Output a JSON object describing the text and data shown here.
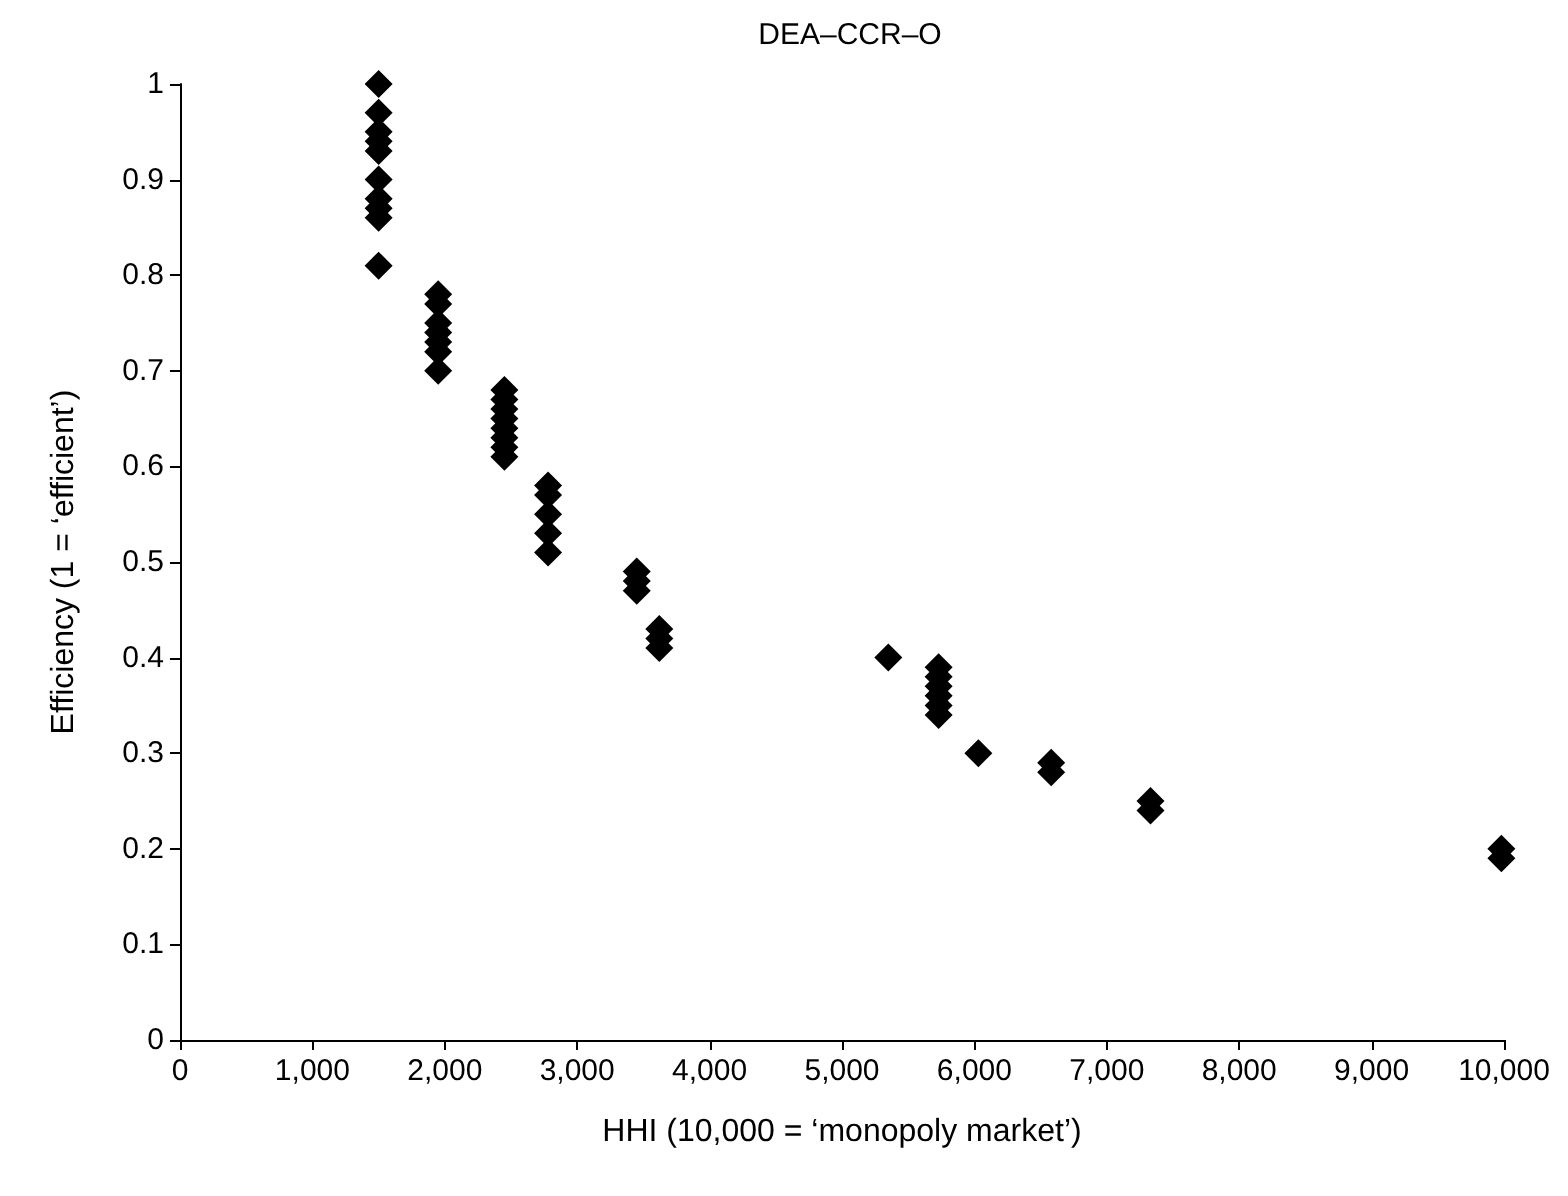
{
  "chart_data": {
    "type": "scatter",
    "title": "DEA–CCR–O",
    "xlabel": "HHI (10,000 = ‘monopoly market’)",
    "ylabel": "Efficiency (1 = ‘efficient’)",
    "x": [
      1500,
      1500,
      1500,
      1500,
      1500,
      1500,
      1500,
      1500,
      1500,
      1500,
      1950,
      1950,
      1950,
      1950,
      1950,
      1950,
      1950,
      2450,
      2450,
      2450,
      2450,
      2450,
      2450,
      2450,
      2450,
      2780,
      2780,
      2780,
      2780,
      2780,
      3450,
      3450,
      3450,
      3620,
      3620,
      3620,
      5350,
      5730,
      5730,
      5730,
      5730,
      5730,
      5730,
      6030,
      6580,
      6580,
      7330,
      7330,
      9980,
      9980
    ],
    "values": [
      1.0,
      0.97,
      0.95,
      0.94,
      0.93,
      0.9,
      0.88,
      0.87,
      0.86,
      0.81,
      0.78,
      0.77,
      0.75,
      0.74,
      0.73,
      0.72,
      0.7,
      0.68,
      0.67,
      0.66,
      0.65,
      0.64,
      0.63,
      0.62,
      0.61,
      0.58,
      0.57,
      0.55,
      0.53,
      0.51,
      0.49,
      0.48,
      0.47,
      0.43,
      0.42,
      0.41,
      0.4,
      0.39,
      0.38,
      0.37,
      0.36,
      0.35,
      0.34,
      0.3,
      0.29,
      0.28,
      0.25,
      0.24,
      0.2,
      0.19
    ],
    "color": "#000000",
    "marker": "diamond",
    "grid": false,
    "xlim": [
      0,
      10000
    ],
    "xticks": [
      0,
      {
        "value": 1000,
        "label": "1,000"
      },
      {
        "value": 2000,
        "label": "2,000"
      },
      {
        "value": 3000,
        "label": "3,000"
      },
      {
        "value": 4000,
        "label": "4,000"
      },
      {
        "value": 5000,
        "label": "5,000"
      },
      {
        "value": 6000,
        "label": "6,000"
      },
      {
        "value": 7000,
        "label": "7,000"
      },
      {
        "value": 8000,
        "label": "8,000"
      },
      {
        "value": 9000,
        "label": "9,000"
      },
      {
        "value": 10000,
        "label": "10,000"
      }
    ],
    "ylim": [
      0,
      1
    ],
    "yticks": [
      0,
      0.1,
      0.2,
      0.3,
      0.4,
      0.5,
      0.6,
      0.7,
      0.8,
      0.9,
      1
    ]
  }
}
